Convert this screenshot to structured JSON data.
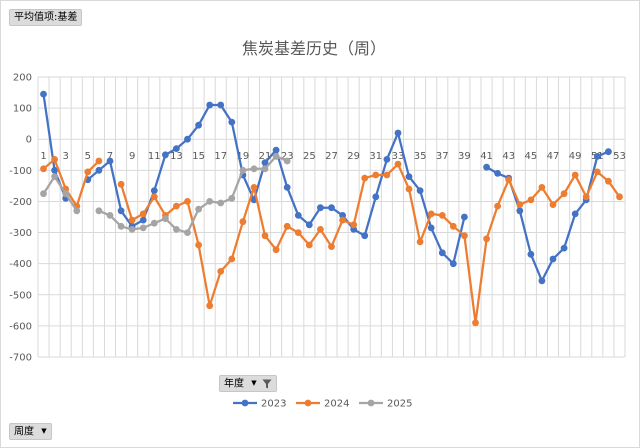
{
  "pivot": {
    "value_field_label": "平均值项:基差",
    "filter_field_label": "年度",
    "axis_field_label": "周度"
  },
  "chart_data": {
    "type": "line",
    "title": "焦炭基差历史（周）",
    "xlabel": "",
    "ylabel": "",
    "x": [
      1,
      2,
      3,
      4,
      5,
      6,
      7,
      8,
      9,
      10,
      11,
      12,
      13,
      14,
      15,
      16,
      17,
      18,
      19,
      20,
      21,
      22,
      23,
      24,
      25,
      26,
      27,
      28,
      29,
      30,
      31,
      32,
      33,
      34,
      35,
      36,
      37,
      38,
      39,
      40,
      41,
      42,
      43,
      44,
      45,
      46,
      47,
      48,
      49,
      50,
      51,
      52,
      53
    ],
    "x_tick_labels": [
      "1",
      "3",
      "5",
      "7",
      "9",
      "11",
      "13",
      "15",
      "17",
      "19",
      "21",
      "23",
      "25",
      "27",
      "29",
      "31",
      "33",
      "35",
      "37",
      "39",
      "41",
      "43",
      "45",
      "47",
      "49",
      "51",
      "53"
    ],
    "ylim": [
      -700,
      200
    ],
    "y_ticks": [
      200,
      100,
      0,
      -100,
      -200,
      -300,
      -400,
      -500,
      -600,
      -700
    ],
    "y_tick_labels": [
      "200",
      "100",
      "0",
      "-100",
      "-200",
      "-300",
      "-400",
      "-500",
      "-600",
      "-700"
    ],
    "grid": true,
    "legend_position": "bottom",
    "series": [
      {
        "name": "2023",
        "color": "#4472c4",
        "values": [
          145,
          -100,
          -190,
          null,
          -130,
          -100,
          -70,
          -230,
          -280,
          -260,
          -165,
          -50,
          -30,
          0,
          45,
          110,
          110,
          55,
          -115,
          -195,
          -75,
          -35,
          -155,
          -245,
          -275,
          -220,
          -220,
          -245,
          -290,
          -310,
          -185,
          -65,
          20,
          -120,
          -165,
          -285,
          -365,
          -400,
          -250,
          null,
          -90,
          -110,
          -125,
          -230,
          -370,
          -455,
          -385,
          -350,
          -240,
          -195,
          -55,
          -40,
          null
        ]
      },
      {
        "name": "2024",
        "color": "#ed7d31",
        "values": [
          -95,
          -65,
          -160,
          -215,
          -105,
          -70,
          null,
          -145,
          -260,
          -240,
          -185,
          -245,
          -215,
          -200,
          -340,
          -535,
          -425,
          -385,
          -265,
          -155,
          -310,
          -355,
          -280,
          -300,
          -340,
          -290,
          -345,
          -260,
          -275,
          -125,
          -115,
          -115,
          -80,
          -160,
          -330,
          -240,
          -245,
          -280,
          -310,
          -590,
          -320,
          -215,
          -130,
          -210,
          -195,
          -155,
          -210,
          -175,
          -115,
          -185,
          -105,
          -135,
          -185
        ]
      },
      {
        "name": "2025",
        "color": "#a5a5a5",
        "values": [
          -175,
          -120,
          -175,
          -230,
          null,
          -230,
          -245,
          -280,
          -290,
          -285,
          -270,
          -255,
          -290,
          -300,
          -225,
          -200,
          -205,
          -190,
          -100,
          -95,
          -95,
          -55,
          -70,
          null,
          null,
          null,
          null,
          null,
          null,
          null,
          null,
          null,
          null,
          null,
          null,
          null,
          null,
          null,
          null,
          null,
          null,
          null,
          null,
          null,
          null,
          null,
          null,
          null,
          null,
          null,
          null,
          null,
          null
        ]
      }
    ]
  }
}
